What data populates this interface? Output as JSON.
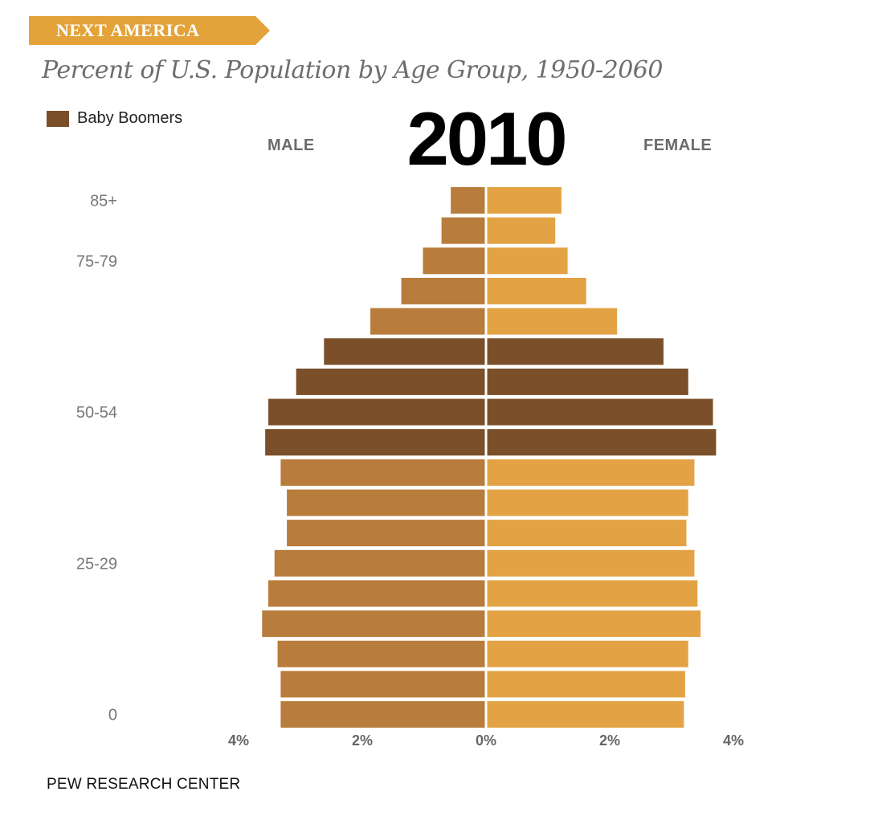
{
  "banner": {
    "label": "NEXT AMERICA",
    "color": "#e3a33a"
  },
  "title": "Percent of U.S. Population by Age Group, 1950-2060",
  "legend": {
    "label": "Baby Boomers",
    "color": "#7a4f2a"
  },
  "year": "2010",
  "labels": {
    "male": "MALE",
    "female": "FEMALE"
  },
  "source": "PEW RESEARCH CENTER",
  "colors": {
    "male": "#b87c3c",
    "female": "#e3a345",
    "boomer": "#7a4f2a",
    "axis_text": "#777777"
  },
  "chart_data": {
    "type": "bar",
    "orientation": "horizontal-population-pyramid",
    "age_labels": [
      "85+",
      "",
      "75-79",
      "",
      "",
      "",
      "",
      "50-54",
      "",
      "",
      "",
      "",
      "25-29",
      "",
      "",
      "",
      "",
      "0"
    ],
    "series": [
      {
        "name": "MALE",
        "values": [
          0.55,
          0.7,
          1.0,
          1.35,
          1.85,
          2.6,
          3.05,
          3.5,
          3.55,
          3.3,
          3.2,
          3.2,
          3.4,
          3.5,
          3.6,
          3.35,
          3.3,
          3.3
        ]
      },
      {
        "name": "FEMALE",
        "values": [
          1.2,
          1.1,
          1.3,
          1.6,
          2.1,
          2.85,
          3.25,
          3.65,
          3.7,
          3.35,
          3.25,
          3.22,
          3.35,
          3.4,
          3.45,
          3.25,
          3.2,
          3.18
        ]
      }
    ],
    "baby_boomer_rows": [
      5,
      6,
      7,
      8
    ],
    "x_ticks": [
      "4%",
      "2%",
      "0%",
      "2%",
      "4%"
    ],
    "xlim": [
      -4,
      4
    ]
  }
}
